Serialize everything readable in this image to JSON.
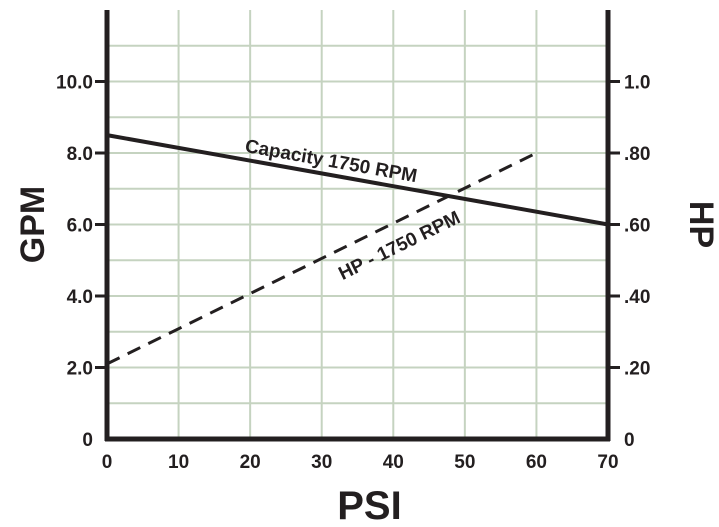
{
  "chart_data": {
    "type": "line",
    "title": "",
    "xlabel": "PSI",
    "ylabel_left": "GPM",
    "ylabel_right": "HP",
    "xlim": [
      0,
      70
    ],
    "ylim_left": [
      0,
      12
    ],
    "ylim_right": [
      0,
      1.2
    ],
    "grid": true,
    "x_ticks": [
      0,
      10,
      20,
      30,
      40,
      50,
      60,
      70
    ],
    "x_tick_labels": [
      "0",
      "10",
      "20",
      "30",
      "40",
      "50",
      "60",
      "70"
    ],
    "y_left_ticks": [
      0,
      2,
      4,
      6,
      8,
      10
    ],
    "y_left_tick_labels": [
      "0",
      "2.0",
      "4.0",
      "6.0",
      "8.0",
      "10.0"
    ],
    "y_right_ticks": [
      0,
      0.2,
      0.4,
      0.6,
      0.8,
      1.0
    ],
    "y_right_tick_labels": [
      "0",
      ".20",
      ".40",
      ".60",
      ".80",
      "1.0"
    ],
    "series": [
      {
        "name": "Capacity 1750 RPM",
        "axis": "left",
        "style": "solid",
        "x": [
          0,
          70
        ],
        "y": [
          8.5,
          6.0
        ]
      },
      {
        "name": "HP - 1750 RPM",
        "axis": "right",
        "style": "dashed",
        "x": [
          0,
          60
        ],
        "y": [
          0.21,
          0.8
        ]
      }
    ],
    "colors": {
      "axis": "#231f20",
      "grid": "#c5d3c0",
      "series": "#231f20"
    }
  }
}
